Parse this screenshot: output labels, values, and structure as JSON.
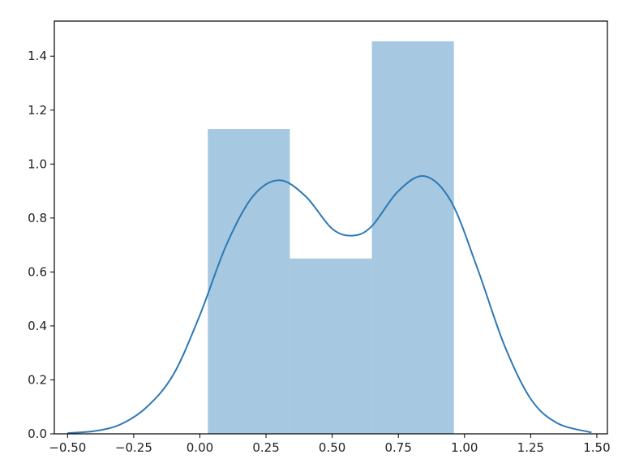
{
  "chart_data": {
    "type": "bar",
    "title": "",
    "xlabel": "",
    "ylabel": "",
    "xlim": [
      -0.55,
      1.54
    ],
    "ylim": [
      0.0,
      1.53
    ],
    "xticks": [
      "−0.50",
      "−0.25",
      "0.00",
      "0.25",
      "0.50",
      "0.75",
      "1.00",
      "1.25",
      "1.50"
    ],
    "yticks": [
      "0.0",
      "0.2",
      "0.4",
      "0.6",
      "0.8",
      "1.0",
      "1.2",
      "1.4"
    ],
    "grid": false,
    "legend": "none",
    "histogram": {
      "bins": [
        {
          "x0": 0.03,
          "x1": 0.34,
          "density": 1.13
        },
        {
          "x0": 0.34,
          "x1": 0.65,
          "density": 0.65
        },
        {
          "x0": 0.65,
          "x1": 0.96,
          "density": 1.455
        }
      ],
      "color": "#a6c8e0"
    },
    "kde": {
      "color": "#2f78b4",
      "x": [
        -0.5,
        -0.4,
        -0.3,
        -0.2,
        -0.1,
        0.0,
        0.1,
        0.2,
        0.3,
        0.4,
        0.5,
        0.58,
        0.65,
        0.75,
        0.85,
        0.95,
        1.05,
        1.15,
        1.25,
        1.35,
        1.48
      ],
      "y": [
        0.003,
        0.01,
        0.035,
        0.1,
        0.22,
        0.44,
        0.7,
        0.88,
        0.94,
        0.88,
        0.76,
        0.735,
        0.77,
        0.9,
        0.955,
        0.86,
        0.61,
        0.33,
        0.13,
        0.04,
        0.005
      ]
    }
  }
}
